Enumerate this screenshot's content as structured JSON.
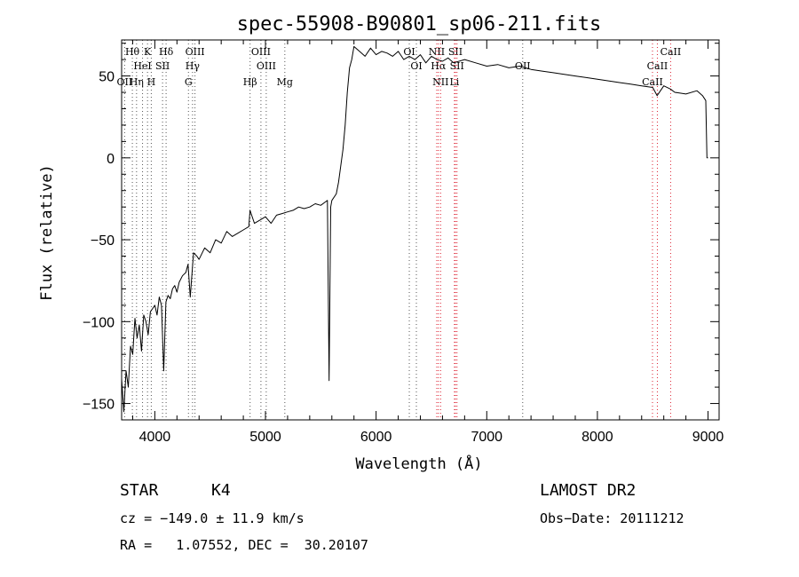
{
  "chart_data": {
    "type": "line",
    "title": "spec-55908-B90801_sp06-211.fits",
    "xlabel": "Wavelength (Å)",
    "ylabel": "Flux (relative)",
    "xlim": [
      3700,
      9100
    ],
    "ylim": [
      -160,
      72
    ],
    "xticks": [
      4000,
      5000,
      6000,
      7000,
      8000,
      9000
    ],
    "yticks": [
      -150,
      -100,
      -50,
      0,
      50
    ],
    "series": [
      {
        "x": [
          3700,
          3720,
          3740,
          3760,
          3780,
          3800,
          3820,
          3840,
          3860,
          3880,
          3900,
          3920,
          3940,
          3960,
          3980,
          4000,
          4020,
          4040,
          4060,
          4080,
          4100,
          4120,
          4140,
          4160,
          4180,
          4200,
          4220,
          4250,
          4280,
          4300,
          4320,
          4350,
          4380,
          4400,
          4450,
          4500,
          4550,
          4600,
          4650,
          4700,
          4750,
          4800,
          4850,
          4860,
          4900,
          4950,
          5000,
          5050,
          5100,
          5150,
          5200,
          5250,
          5300,
          5350,
          5400,
          5450,
          5500,
          5540,
          5560,
          5575,
          5590,
          5600,
          5640,
          5660,
          5680,
          5700,
          5720,
          5740,
          5760,
          5780,
          5800,
          5850,
          5900,
          5950,
          6000,
          6050,
          6100,
          6150,
          6200,
          6250,
          6300,
          6350,
          6400,
          6450,
          6500,
          6550,
          6600,
          6650,
          6700,
          6800,
          6900,
          7000,
          7100,
          7200,
          7300,
          7400,
          7500,
          7600,
          7700,
          7800,
          7900,
          8000,
          8100,
          8200,
          8300,
          8400,
          8500,
          8540,
          8600,
          8660,
          8700,
          8800,
          8900,
          8950,
          8980,
          8990,
          9000
        ],
        "y": [
          -135,
          -155,
          -130,
          -140,
          -115,
          -120,
          -98,
          -110,
          -102,
          -118,
          -96,
          -100,
          -108,
          -94,
          -92,
          -90,
          -96,
          -85,
          -90,
          -130,
          -88,
          -84,
          -86,
          -80,
          -78,
          -82,
          -76,
          -72,
          -70,
          -65,
          -85,
          -58,
          -60,
          -62,
          -55,
          -58,
          -50,
          -52,
          -45,
          -48,
          -46,
          -44,
          -42,
          -32,
          -40,
          -38,
          -36,
          -40,
          -35,
          -34,
          -33,
          -32,
          -30,
          -31,
          -30,
          -28,
          -29,
          -27,
          -26,
          -136,
          -30,
          -26,
          -22,
          -15,
          -5,
          5,
          20,
          40,
          55,
          60,
          68,
          65,
          62,
          67,
          63,
          65,
          64,
          62,
          65,
          60,
          62,
          60,
          63,
          58,
          62,
          60,
          59,
          61,
          58,
          60,
          58,
          56,
          57,
          55,
          56,
          54,
          53,
          52,
          51,
          50,
          49,
          48,
          47,
          46,
          45,
          44,
          43,
          38,
          44,
          42,
          40,
          39,
          41,
          38,
          35,
          0,
          0
        ]
      }
    ],
    "spectral_lines": [
      {
        "label": "Hθ",
        "x": 3797,
        "row": 1
      },
      {
        "label": "K",
        "x": 3934,
        "row": 1
      },
      {
        "label": "Hδ",
        "x": 4102,
        "row": 1
      },
      {
        "label": "OIII",
        "x": 4363,
        "row": 1
      },
      {
        "label": "OIII",
        "x": 4959,
        "row": 1
      },
      {
        "label": "OI",
        "x": 6300,
        "row": 1
      },
      {
        "label": "NII",
        "x": 6548,
        "row": 1
      },
      {
        "label": "SII",
        "x": 6717,
        "row": 1
      },
      {
        "label": "CaII",
        "x": 8662,
        "row": 1
      },
      {
        "label": "HeI",
        "x": 3889,
        "row": 2
      },
      {
        "label": "SII",
        "x": 4070,
        "row": 2
      },
      {
        "label": "Hγ",
        "x": 4341,
        "row": 2
      },
      {
        "label": "OIII",
        "x": 5007,
        "row": 2
      },
      {
        "label": "OI",
        "x": 6364,
        "row": 2
      },
      {
        "label": "Hα",
        "x": 6563,
        "row": 2
      },
      {
        "label": "SII",
        "x": 6731,
        "row": 2
      },
      {
        "label": "OII",
        "x": 7325,
        "row": 2
      },
      {
        "label": "CaII",
        "x": 8542,
        "row": 2
      },
      {
        "label": "OII",
        "x": 3727,
        "row": 3
      },
      {
        "label": "Hη",
        "x": 3835,
        "row": 3
      },
      {
        "label": "H",
        "x": 3968,
        "row": 3
      },
      {
        "label": "G",
        "x": 4304,
        "row": 3
      },
      {
        "label": "Hβ",
        "x": 4861,
        "row": 3
      },
      {
        "label": "Mg",
        "x": 5175,
        "row": 3
      },
      {
        "label": "NII",
        "x": 6583,
        "row": 3
      },
      {
        "label": "Li",
        "x": 6708,
        "row": 3
      },
      {
        "label": "CaII",
        "x": 8498,
        "row": 3
      }
    ]
  },
  "info": {
    "class": "STAR",
    "subclass": "K4",
    "survey": "LAMOST DR2",
    "cz": "cz = −149.0 ± 11.9 km/s",
    "obs_date": "Obs−Date: 20111212",
    "coords": "RA =   1.07552, DEC =  30.20107"
  }
}
